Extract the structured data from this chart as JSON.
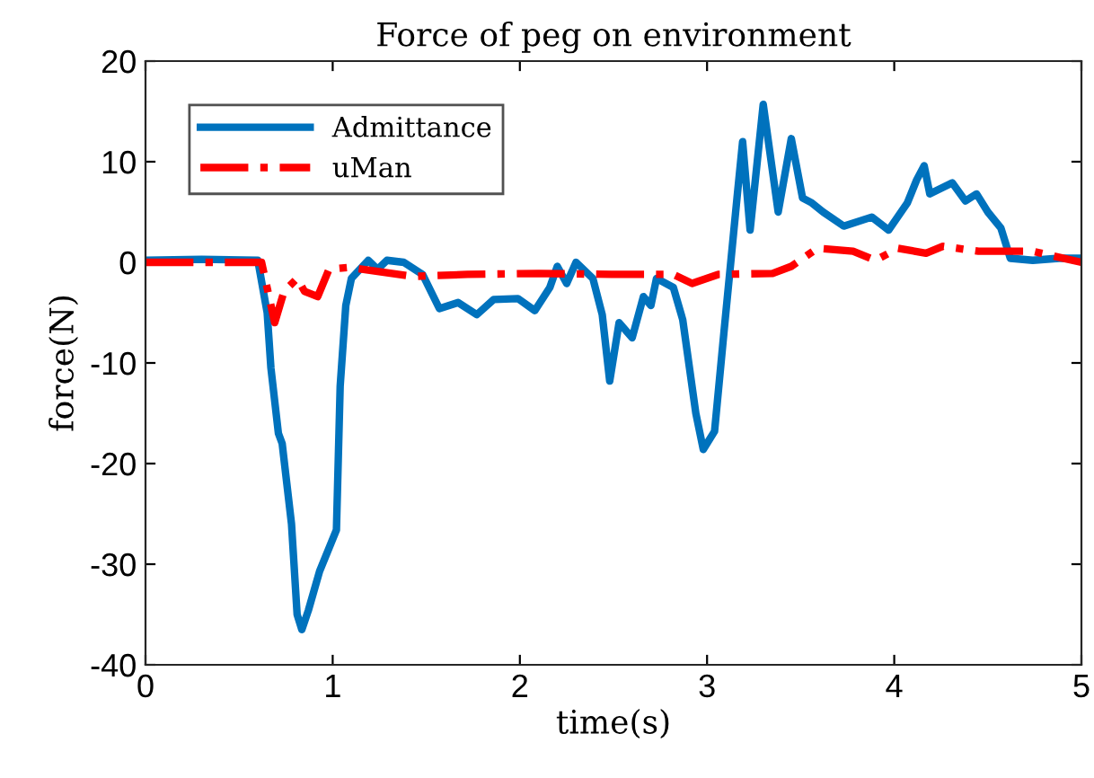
{
  "chart_data": {
    "type": "line",
    "title": "Force of peg on environment",
    "xlabel": "time(s)",
    "ylabel": "force(N)",
    "xlim": [
      0,
      5
    ],
    "xticks": [
      0,
      1,
      2,
      3,
      4,
      5
    ],
    "ylim": [
      -40,
      20
    ],
    "yticks": [
      -40,
      -30,
      -20,
      -10,
      0,
      10,
      20
    ],
    "grid": false,
    "legend": "top left",
    "series": [
      {
        "name": "Admittance",
        "color": "#0072bd",
        "line_style": "solid",
        "x": [
          0,
          0.3,
          0.6,
          0.65,
          0.67,
          0.71,
          0.73,
          0.78,
          0.81,
          0.835,
          0.87,
          0.93,
          1.02,
          1.04,
          1.07,
          1.1,
          1.19,
          1.24,
          1.29,
          1.38,
          1.48,
          1.57,
          1.67,
          1.77,
          1.86,
          1.99,
          2.08,
          2.16,
          2.2,
          2.25,
          2.3,
          2.39,
          2.44,
          2.48,
          2.53,
          2.6,
          2.66,
          2.7,
          2.73,
          2.82,
          2.87,
          2.94,
          2.98,
          3.04,
          3.09,
          3.16,
          3.19,
          3.23,
          3.3,
          3.38,
          3.45,
          3.51,
          3.56,
          3.62,
          3.73,
          3.88,
          3.97,
          4.07,
          4.12,
          4.16,
          4.19,
          4.31,
          4.38,
          4.44,
          4.5,
          4.57,
          4.62,
          4.74,
          4.88,
          5
        ],
        "values": [
          0.2,
          0.3,
          0.2,
          -5,
          -10.5,
          -17,
          -18,
          -26,
          -35,
          -36.5,
          -34.6,
          -30.7,
          -26.6,
          -12.3,
          -4.3,
          -1.6,
          0.2,
          -0.7,
          0.2,
          0,
          -1.2,
          -4.6,
          -4,
          -5.2,
          -3.7,
          -3.6,
          -4.8,
          -2.5,
          -0.4,
          -2.1,
          0,
          -1.6,
          -5.2,
          -11.8,
          -6,
          -7.5,
          -3.4,
          -4.3,
          -1.6,
          -2.5,
          -5.7,
          -15,
          -18.6,
          -16.8,
          -7,
          6.4,
          12,
          3.2,
          15.7,
          5,
          12.3,
          6.4,
          5.9,
          5,
          3.6,
          4.5,
          3.2,
          5.9,
          8.2,
          9.6,
          6.8,
          7.9,
          6.1,
          6.8,
          5,
          3.4,
          0.4,
          0.2,
          0.4,
          0.4
        ]
      },
      {
        "name": "uMan",
        "color": "#ff0000",
        "line_style": "dashdot",
        "x": [
          0,
          0.3,
          0.62,
          0.66,
          0.69,
          0.74,
          0.81,
          0.85,
          0.92,
          0.98,
          1.09,
          1.24,
          1.43,
          1.72,
          2.1,
          2.49,
          2.82,
          2.92,
          3.06,
          3.35,
          3.45,
          3.59,
          3.78,
          3.9,
          4.02,
          4.17,
          4.26,
          4.45,
          4.74,
          4.88,
          5
        ],
        "values": [
          0,
          0,
          0,
          -3.4,
          -6,
          -2.9,
          -1.6,
          -2.9,
          -3.4,
          -0.7,
          -0.5,
          -0.9,
          -1.4,
          -1.2,
          -1.1,
          -1.2,
          -1.2,
          -2.1,
          -1.2,
          -1.1,
          -0.4,
          1.4,
          1.1,
          0.2,
          1.4,
          0.9,
          1.6,
          1.1,
          1.1,
          0.5,
          0
        ]
      }
    ]
  }
}
